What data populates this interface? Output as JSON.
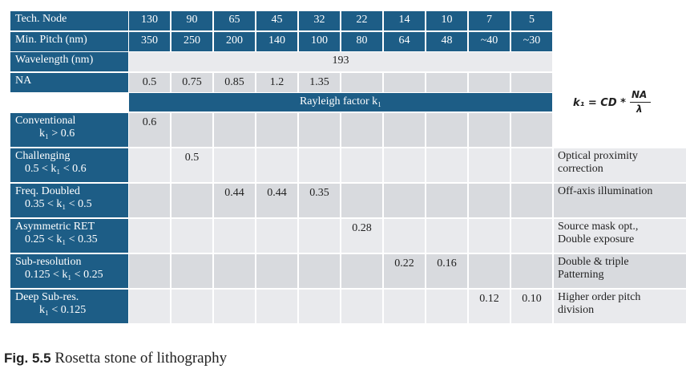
{
  "table": {
    "header_rows": [
      {
        "label": "Tech. Node",
        "cells": [
          130,
          90,
          65,
          45,
          32,
          22,
          14,
          10,
          7,
          5
        ]
      },
      {
        "label": "Min. Pitch (nm)",
        "cells": [
          350,
          250,
          200,
          140,
          100,
          80,
          64,
          48,
          "~40",
          "~30"
        ]
      }
    ],
    "wavelength": {
      "label": "Wavelength (nm)",
      "value": 193
    },
    "na": {
      "label": "NA",
      "cells": [
        0.5,
        0.75,
        0.85,
        1.2,
        1.35,
        null,
        null,
        null,
        null,
        null
      ]
    },
    "rayleigh_header": "Rayleigh factor k₁",
    "rows": [
      {
        "name": "Conventional",
        "range": "k₁ > 0.6",
        "cells": [
          0.6,
          null,
          null,
          null,
          null,
          null,
          null,
          null,
          null,
          null
        ],
        "note": null
      },
      {
        "name": "Challenging",
        "range": "0.5 < k₁ < 0.6",
        "cells": [
          null,
          0.5,
          null,
          null,
          null,
          null,
          null,
          null,
          null,
          null
        ],
        "note": [
          "Optical proximity",
          "correction"
        ]
      },
      {
        "name": "Freq. Doubled",
        "range": "0.35 < k₁ < 0.5",
        "cells": [
          null,
          null,
          0.44,
          0.44,
          0.35,
          null,
          null,
          null,
          null,
          null
        ],
        "note": [
          "Off-axis illumination"
        ]
      },
      {
        "name": "Asymmetric RET",
        "range": "0.25 < k₁ < 0.35",
        "cells": [
          null,
          null,
          null,
          null,
          null,
          0.28,
          null,
          null,
          null,
          null
        ],
        "note": [
          "Source mask opt.,",
          "Double exposure"
        ]
      },
      {
        "name": "Sub-resolution",
        "range": "0.125 < k₁ < 0.25",
        "cells": [
          null,
          null,
          null,
          null,
          null,
          null,
          0.22,
          0.16,
          null,
          null
        ],
        "note": [
          "Double & triple",
          "Patterning"
        ]
      },
      {
        "name": "Deep Sub-res.",
        "range": "k₁ < 0.125",
        "cells": [
          null,
          null,
          null,
          null,
          null,
          null,
          null,
          null,
          0.12,
          "0.10"
        ],
        "note": [
          "Higher order pitch",
          "division"
        ]
      }
    ]
  },
  "formula": {
    "lhs": "k₁ = CD *",
    "numerator": "NA",
    "denominator": "λ"
  },
  "caption": {
    "label": "Fig. 5.5",
    "text": "Rosetta stone of lithography"
  }
}
